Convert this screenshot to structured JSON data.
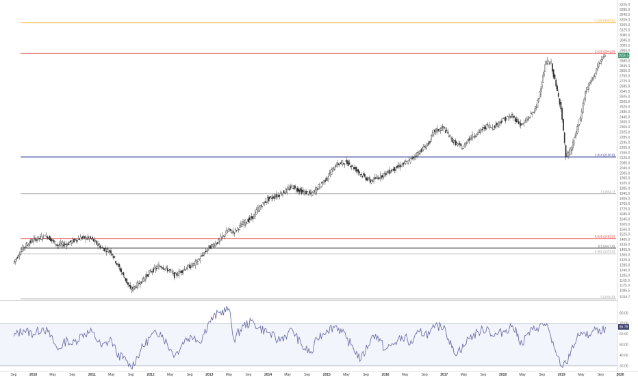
{
  "chart_data": [
    {
      "type": "candlestick",
      "title": "",
      "ylim": [
        1020,
        3360
      ],
      "price_axis_ticks": [
        1034.7,
        1085.5,
        1125.0,
        1165.0,
        1205.0,
        1245.0,
        1285.0,
        1325.0,
        1365.0,
        1405.0,
        1445.0,
        1485.0,
        1525.0,
        1565.0,
        1605.0,
        1645.0,
        1685.0,
        1725.0,
        1765.0,
        1805.0,
        1845.0,
        1885.0,
        1925.0,
        1965.0,
        2005.0,
        2045.0,
        2085.0,
        2125.0,
        2165.0,
        2205.0,
        2245.0,
        2285.0,
        2325.0,
        2365.0,
        2405.0,
        2445.0,
        2485.0,
        2525.0,
        2565.0,
        2605.0,
        2645.0,
        2685.0,
        2725.0,
        2765.0,
        2805.0,
        2845.0,
        2885.0,
        2925.0,
        2965.0,
        3005.0,
        3045.0,
        3085.0,
        3125.0,
        3165.0,
        3205.0,
        3245.0,
        3285.0,
        3325.0
      ],
      "last_price": "2926.5",
      "last_price_color": "#3d8f6b",
      "fib_levels": [
        {
          "label": "0 (1010.9)",
          "value": 1010.9,
          "color": "#9a9a9a"
        },
        {
          "label": "0.382 (1373.0)",
          "value": 1373.0,
          "color": "#9a9a9a"
        },
        {
          "label": "0.5 (1417.6)",
          "value": 1417.6,
          "color": "#555555"
        },
        {
          "label": "0.618 (1491.5)",
          "value": 1491.5,
          "color": "#e53935"
        },
        {
          "label": "1 (1842.7)",
          "value": 1842.7,
          "color": "#9a9a9a"
        },
        {
          "label": "1.414 (2130.9)",
          "value": 2130.9,
          "color": "#283593"
        },
        {
          "label": "2.618 (2941.0)",
          "value": 2941.0,
          "color": "#e53935"
        },
        {
          "label": "4.236 (3937.0)",
          "value": 3937.0,
          "color": "#f9a825"
        }
      ],
      "series": [
        {
          "name": "",
          "points": [
            [
              "2009-09",
              1300
            ],
            [
              "2009-11",
              1420
            ],
            [
              "2010-01",
              1480
            ],
            [
              "2010-03",
              1505
            ],
            [
              "2010-04",
              1510
            ],
            [
              "2010-06",
              1440
            ],
            [
              "2010-08",
              1450
            ],
            [
              "2010-09",
              1470
            ],
            [
              "2010-11",
              1500
            ],
            [
              "2011-01",
              1490
            ],
            [
              "2011-03",
              1420
            ],
            [
              "2011-05",
              1390
            ],
            [
              "2011-06",
              1310
            ],
            [
              "2011-08",
              1170
            ],
            [
              "2011-09",
              1090
            ],
            [
              "2011-11",
              1150
            ],
            [
              "2012-01",
              1230
            ],
            [
              "2012-03",
              1280
            ],
            [
              "2012-05",
              1240
            ],
            [
              "2012-06",
              1200
            ],
            [
              "2012-08",
              1255
            ],
            [
              "2012-10",
              1290
            ],
            [
              "2012-11",
              1330
            ],
            [
              "2013-01",
              1420
            ],
            [
              "2013-03",
              1470
            ],
            [
              "2013-05",
              1560
            ],
            [
              "2013-06",
              1540
            ],
            [
              "2013-08",
              1610
            ],
            [
              "2013-10",
              1660
            ],
            [
              "2013-11",
              1720
            ],
            [
              "2014-01",
              1800
            ],
            [
              "2014-03",
              1830
            ],
            [
              "2014-05",
              1870
            ],
            [
              "2014-06",
              1900
            ],
            [
              "2014-08",
              1860
            ],
            [
              "2014-10",
              1840
            ],
            [
              "2014-11",
              1880
            ],
            [
              "2015-01",
              1960
            ],
            [
              "2015-03",
              2070
            ],
            [
              "2015-05",
              2090
            ],
            [
              "2015-06",
              2070
            ],
            [
              "2015-08",
              2000
            ],
            [
              "2015-10",
              1940
            ],
            [
              "2015-11",
              1960
            ],
            [
              "2016-01",
              2000
            ],
            [
              "2016-03",
              2040
            ],
            [
              "2016-05",
              2080
            ],
            [
              "2016-06",
              2100
            ],
            [
              "2016-08",
              2170
            ],
            [
              "2016-10",
              2240
            ],
            [
              "2016-11",
              2330
            ],
            [
              "2017-01",
              2360
            ],
            [
              "2017-03",
              2250
            ],
            [
              "2017-05",
              2200
            ],
            [
              "2017-06",
              2270
            ],
            [
              "2017-08",
              2320
            ],
            [
              "2017-10",
              2380
            ],
            [
              "2017-11",
              2360
            ],
            [
              "2018-01",
              2420
            ],
            [
              "2018-03",
              2450
            ],
            [
              "2018-05",
              2380
            ],
            [
              "2018-06",
              2420
            ],
            [
              "2018-08",
              2520
            ],
            [
              "2018-10",
              2880
            ],
            [
              "2018-11",
              2860
            ],
            [
              "2018-12",
              2680
            ],
            [
              "2019-01",
              2520
            ],
            [
              "2019-02",
              2130
            ],
            [
              "2019-03",
              2180
            ],
            [
              "2019-05",
              2440
            ],
            [
              "2019-06",
              2640
            ],
            [
              "2019-08",
              2790
            ],
            [
              "2019-09",
              2880
            ],
            [
              "2019-10",
              2926.5
            ]
          ]
        }
      ]
    },
    {
      "type": "line",
      "title": "",
      "ylim": [
        26,
        90
      ],
      "axis_ticks": [
        30.0,
        40.0,
        50.0,
        60.0,
        70.0,
        80.0
      ],
      "band": [
        30,
        70
      ],
      "last_value": "66.78",
      "series": [
        {
          "name": "",
          "points": [
            [
              "2009-09",
              58
            ],
            [
              "2009-11",
              64
            ],
            [
              "2010-01",
              60
            ],
            [
              "2010-03",
              66
            ],
            [
              "2010-04",
              62
            ],
            [
              "2010-06",
              45
            ],
            [
              "2010-08",
              55
            ],
            [
              "2010-09",
              50
            ],
            [
              "2010-11",
              60
            ],
            [
              "2011-01",
              62
            ],
            [
              "2011-03",
              48
            ],
            [
              "2011-05",
              55
            ],
            [
              "2011-06",
              42
            ],
            [
              "2011-08",
              35
            ],
            [
              "2011-09",
              28
            ],
            [
              "2011-11",
              45
            ],
            [
              "2012-01",
              58
            ],
            [
              "2012-03",
              62
            ],
            [
              "2012-05",
              46
            ],
            [
              "2012-06",
              40
            ],
            [
              "2012-08",
              55
            ],
            [
              "2012-10",
              58
            ],
            [
              "2012-11",
              52
            ],
            [
              "2013-01",
              72
            ],
            [
              "2013-03",
              80
            ],
            [
              "2013-05",
              84
            ],
            [
              "2013-06",
              55
            ],
            [
              "2013-08",
              68
            ],
            [
              "2013-10",
              72
            ],
            [
              "2013-11",
              66
            ],
            [
              "2014-01",
              62
            ],
            [
              "2014-03",
              54
            ],
            [
              "2014-05",
              60
            ],
            [
              "2014-06",
              64
            ],
            [
              "2014-08",
              48
            ],
            [
              "2014-10",
              42
            ],
            [
              "2014-11",
              56
            ],
            [
              "2015-01",
              64
            ],
            [
              "2015-03",
              68
            ],
            [
              "2015-05",
              56
            ],
            [
              "2015-06",
              50
            ],
            [
              "2015-08",
              36
            ],
            [
              "2015-10",
              55
            ],
            [
              "2015-11",
              60
            ],
            [
              "2016-01",
              45
            ],
            [
              "2016-03",
              52
            ],
            [
              "2016-05",
              58
            ],
            [
              "2016-06",
              50
            ],
            [
              "2016-08",
              62
            ],
            [
              "2016-10",
              60
            ],
            [
              "2016-11",
              66
            ],
            [
              "2017-01",
              68
            ],
            [
              "2017-03",
              42
            ],
            [
              "2017-05",
              48
            ],
            [
              "2017-06",
              56
            ],
            [
              "2017-08",
              62
            ],
            [
              "2017-10",
              66
            ],
            [
              "2017-11",
              58
            ],
            [
              "2018-01",
              62
            ],
            [
              "2018-03",
              68
            ],
            [
              "2018-05",
              50
            ],
            [
              "2018-06",
              60
            ],
            [
              "2018-08",
              66
            ],
            [
              "2018-10",
              70
            ],
            [
              "2018-11",
              52
            ],
            [
              "2018-12",
              40
            ],
            [
              "2019-01",
              30
            ],
            [
              "2019-02",
              32
            ],
            [
              "2019-03",
              46
            ],
            [
              "2019-05",
              62
            ],
            [
              "2019-06",
              58
            ],
            [
              "2019-08",
              64
            ],
            [
              "2019-09",
              60
            ],
            [
              "2019-10",
              66.78
            ]
          ]
        }
      ]
    }
  ],
  "x_axis": {
    "labels": [
      "Sep",
      "2010",
      "May",
      "Sep",
      "2011",
      "May",
      "Sep",
      "2012",
      "May",
      "Sep",
      "2013",
      "May",
      "Sep",
      "2014",
      "May",
      "Sep",
      "2015",
      "May",
      "Sep",
      "2016",
      "May",
      "Sep",
      "2017",
      "May",
      "Sep",
      "2018",
      "May",
      "Sep",
      "2019",
      "May",
      "Sep",
      "2020"
    ],
    "dates": [
      "2009-09",
      "2010-01",
      "2010-05",
      "2010-09",
      "2011-01",
      "2011-05",
      "2011-09",
      "2012-01",
      "2012-05",
      "2012-09",
      "2013-01",
      "2013-05",
      "2013-09",
      "2014-01",
      "2014-05",
      "2014-09",
      "2015-01",
      "2015-05",
      "2015-09",
      "2016-01",
      "2016-05",
      "2016-09",
      "2017-01",
      "2017-05",
      "2017-09",
      "2018-01",
      "2018-05",
      "2018-09",
      "2019-01",
      "2019-05",
      "2019-09",
      "2020-01"
    ]
  }
}
